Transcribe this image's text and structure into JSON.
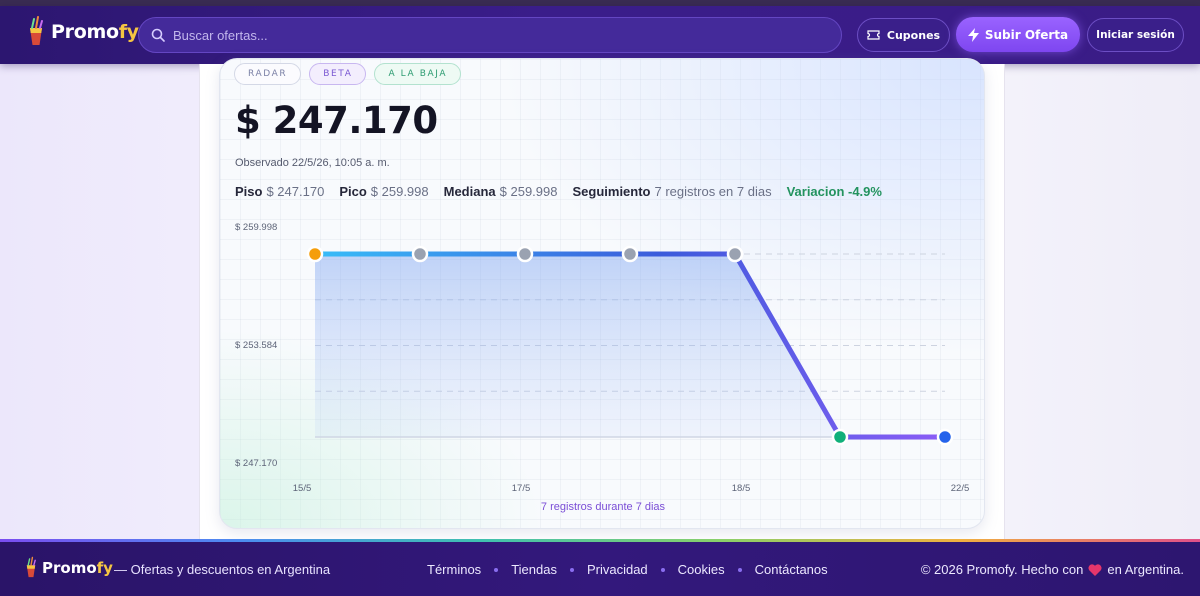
{
  "brand": {
    "name_main": "Promo",
    "name_accent": "fy"
  },
  "search": {
    "placeholder": "Buscar ofertas..."
  },
  "nav": {
    "coupons_label": "Cupones",
    "submit_label": "Subir Oferta",
    "login_label": "Iniciar sesión"
  },
  "card": {
    "tags": {
      "radar": "RADAR",
      "beta": "BETA",
      "down": "A LA BAJA"
    },
    "price": "$ 247.170",
    "observed": "Observado 22/5/26, 10:05 a. m.",
    "stats": {
      "floor_label": "Piso",
      "floor_value": "$ 247.170",
      "peak_label": "Pico",
      "peak_value": "$ 259.998",
      "median_label": "Mediana",
      "median_value": "$ 259.998",
      "tracking_label": "Seguimiento",
      "tracking_value": "7 registros en 7 dias",
      "variation": "Variacion -4.9%"
    },
    "chart_footer": "7 registros durante 7 dias"
  },
  "chart_data": {
    "type": "line",
    "y_tick_labels": [
      "$ 259.998",
      "$ 253.584",
      "$ 247.170"
    ],
    "x_tick_labels": [
      "15/5",
      "17/5",
      "18/5",
      "22/5"
    ],
    "ylim": [
      247170,
      259998
    ],
    "series": [
      {
        "values": [
          259998,
          259998,
          259998,
          259998,
          259998,
          247170,
          247170
        ]
      }
    ],
    "point_colors": [
      "#f59e0b",
      "#9aa2b1",
      "#9aa2b1",
      "#9aa2b1",
      "#9aa2b1",
      "#10b07a",
      "#2563eb"
    ],
    "line_colors": {
      "start": "#38bdf8",
      "mid": "#3b5bdb",
      "end": "#8b5cf6"
    },
    "grid": true
  },
  "footer": {
    "tagline": "— Ofertas y descuentos en Argentina",
    "links": [
      "Términos",
      "Tiendas",
      "Privacidad",
      "Cookies",
      "Contáctanos"
    ],
    "copyright_pre": "© 2026 Promofy. Hecho con",
    "copyright_post": "en Argentina."
  },
  "colors": {
    "accent": "#8b5cf6",
    "nav_bg": "#2c1670",
    "heart": "#e5366b",
    "success": "#23935f"
  }
}
